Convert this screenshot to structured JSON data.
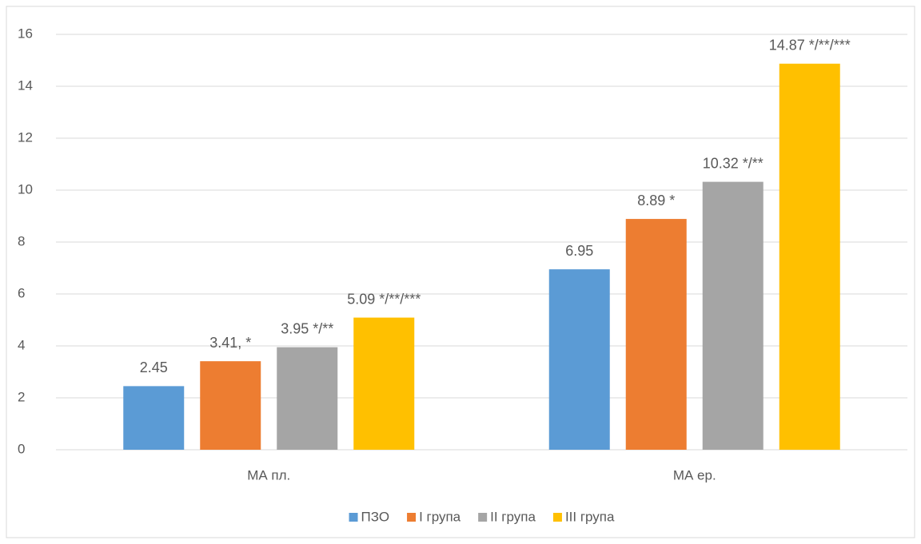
{
  "chart_data": {
    "type": "bar",
    "categories": [
      "МА пл.",
      "МА ер."
    ],
    "series": [
      {
        "name": "ПЗО",
        "color": "#5b9bd5",
        "values": [
          2.45,
          6.95
        ],
        "value_labels": [
          "2.45",
          "6.95"
        ]
      },
      {
        "name": "І група",
        "color": "#ed7d31",
        "values": [
          3.41,
          8.89
        ],
        "value_labels": [
          "3.41, *",
          "8.89 *"
        ]
      },
      {
        "name": "ІІ група",
        "color": "#a5a5a5",
        "values": [
          3.95,
          10.32
        ],
        "value_labels": [
          "3.95 */**",
          "10.32 */**"
        ]
      },
      {
        "name": "ІІІ група",
        "color": "#ffc000",
        "values": [
          5.09,
          14.87
        ],
        "value_labels": [
          "5.09 */**/***",
          "14.87 */**/***"
        ]
      }
    ],
    "ylim": [
      0,
      16
    ],
    "yticks": [
      0,
      2,
      4,
      6,
      8,
      10,
      12,
      14,
      16
    ],
    "grid": true,
    "legend": "bottom"
  }
}
